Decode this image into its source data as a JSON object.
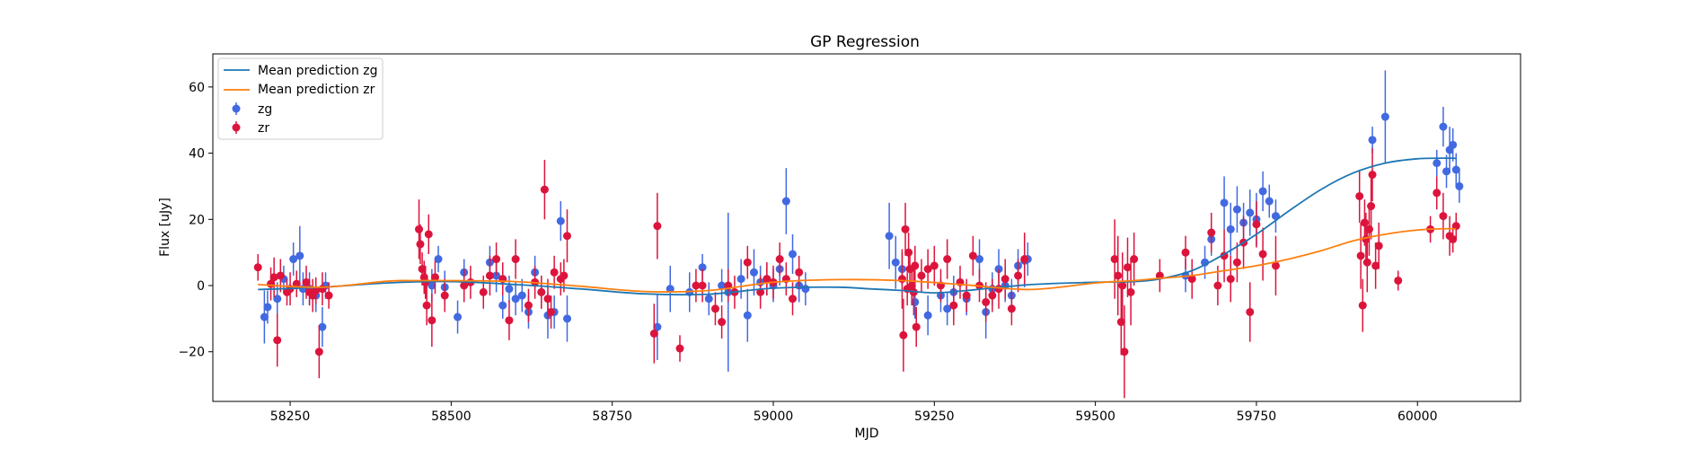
{
  "chart_data": {
    "type": "scatter",
    "title": "GP Regression",
    "xlabel": "MJD",
    "ylabel": "Flux [uJy]",
    "xlim": [
      58130,
      60160
    ],
    "ylim": [
      -35,
      70
    ],
    "xticks": [
      58250,
      58500,
      58750,
      59000,
      59250,
      59500,
      59750,
      60000
    ],
    "yticks": [
      -20,
      0,
      20,
      40,
      60
    ],
    "grid": false,
    "legend_position": "top-left",
    "series": [
      {
        "name": "Mean prediction zg",
        "kind": "line",
        "color": "#1f77b4",
        "x": [
          58200,
          58300,
          58400,
          58500,
          58600,
          58700,
          58800,
          58900,
          59000,
          59100,
          59150,
          59200,
          59250,
          59300,
          59400,
          59500,
          59560,
          59600,
          59650,
          59700,
          59750,
          59800,
          59850,
          59900,
          59950,
          60000,
          60050,
          60060
        ],
        "y": [
          -1.2,
          -0.5,
          0.8,
          1.2,
          0.3,
          -1.0,
          -2.5,
          -2.6,
          -0.8,
          -0.5,
          -1.0,
          -1.5,
          -2.2,
          -1.5,
          0.3,
          1.0,
          1.2,
          2.0,
          4.5,
          9.5,
          15.5,
          22.5,
          29.0,
          34.0,
          37.0,
          38.3,
          38.5,
          38.4
        ]
      },
      {
        "name": "Mean prediction zr",
        "kind": "line",
        "color": "#ff7f0e",
        "x": [
          58200,
          58300,
          58400,
          58450,
          58500,
          58600,
          58700,
          58800,
          58900,
          59000,
          59100,
          59200,
          59300,
          59400,
          59500,
          59560,
          59600,
          59650,
          59700,
          59750,
          59800,
          59850,
          59900,
          59950,
          60000,
          60050,
          60060
        ],
        "y": [
          0.3,
          -0.5,
          1.3,
          1.5,
          1.5,
          1.2,
          -0.2,
          -1.8,
          -1.5,
          1.0,
          1.8,
          1.5,
          0.2,
          -1.2,
          0.8,
          1.5,
          2.2,
          3.0,
          4.5,
          6.0,
          8.0,
          10.5,
          13.5,
          15.5,
          16.8,
          17.2,
          17.0
        ]
      },
      {
        "name": "zg",
        "kind": "errorbar",
        "color": "#4169e1",
        "x": [
          58210,
          58215,
          58230,
          58240,
          58255,
          58265,
          58270,
          58280,
          58290,
          58300,
          58305,
          58470,
          58480,
          58490,
          58510,
          58520,
          58560,
          58570,
          58580,
          58590,
          58600,
          58610,
          58620,
          58630,
          58640,
          58650,
          58660,
          58670,
          58680,
          58820,
          58840,
          58870,
          58890,
          58900,
          58920,
          58930,
          58950,
          58960,
          58970,
          58980,
          58990,
          59000,
          59010,
          59020,
          59030,
          59040,
          59050,
          59180,
          59190,
          59200,
          59220,
          59240,
          59260,
          59270,
          59280,
          59300,
          59320,
          59330,
          59340,
          59350,
          59360,
          59370,
          59380,
          59390,
          59395,
          59640,
          59670,
          59680,
          59700,
          59710,
          59720,
          59730,
          59740,
          59750,
          59760,
          59770,
          59780,
          59930,
          59950,
          60030,
          60040,
          60045,
          60050,
          60055,
          60060,
          60065
        ],
        "y": [
          -9.5,
          -6.5,
          -4,
          2,
          8,
          9,
          -1,
          -1,
          -3,
          -12.5,
          0,
          0,
          8,
          -0.5,
          -9.5,
          4,
          7,
          3,
          -6,
          -1,
          -4,
          -3,
          -8,
          4,
          -2,
          -9,
          -8,
          19.5,
          -10,
          -12.5,
          -1,
          -2,
          5.5,
          -4,
          0,
          -2,
          2,
          -9,
          4,
          1,
          2,
          0,
          5,
          25.5,
          9.5,
          0,
          -1,
          15,
          7,
          5,
          -5,
          -9,
          -3,
          -7,
          -2,
          -4,
          8,
          -8,
          -1,
          5,
          0,
          -3,
          6,
          7.5,
          8,
          3,
          7,
          14,
          25,
          17,
          23,
          19,
          22,
          20,
          28.5,
          25.5,
          21,
          44,
          51,
          37,
          48,
          34.5,
          41,
          42.5,
          35,
          30
        ],
        "yerr": [
          8,
          5,
          5,
          4,
          5,
          9,
          5,
          5,
          5,
          6,
          4,
          5,
          4,
          5,
          5,
          4,
          5,
          5,
          4,
          4,
          5,
          5,
          5,
          5,
          5,
          7,
          5,
          6,
          7,
          10,
          7,
          6,
          4,
          5,
          5,
          24,
          6,
          8,
          7,
          5,
          5,
          5,
          5,
          10,
          6,
          5,
          5,
          10,
          8,
          5,
          5,
          6,
          5,
          5,
          5,
          5,
          6,
          8,
          5,
          6,
          5,
          5,
          5,
          8,
          5,
          5,
          5,
          5,
          8,
          8,
          7,
          6,
          7,
          8,
          6,
          5,
          5,
          4,
          14,
          4,
          6,
          5,
          7,
          5,
          5,
          5
        ]
      },
      {
        "name": "zr",
        "kind": "errorbar",
        "color": "#dc143c",
        "x": [
          58200,
          58220,
          58225,
          58230,
          58235,
          58245,
          58250,
          58260,
          58275,
          58280,
          58285,
          58290,
          58295,
          58300,
          58310,
          58450,
          58452,
          58455,
          58458,
          58460,
          58462,
          58465,
          58470,
          58475,
          58490,
          58520,
          58530,
          58550,
          58560,
          58570,
          58580,
          58590,
          58600,
          58620,
          58630,
          58640,
          58645,
          58650,
          58655,
          58660,
          58670,
          58675,
          58680,
          58815,
          58820,
          58855,
          58880,
          58890,
          58910,
          58920,
          58930,
          58940,
          58960,
          58980,
          58990,
          59000,
          59010,
          59020,
          59030,
          59040,
          59200,
          59202,
          59205,
          59208,
          59210,
          59212,
          59215,
          59218,
          59220,
          59222,
          59230,
          59240,
          59250,
          59260,
          59270,
          59280,
          59290,
          59300,
          59310,
          59320,
          59330,
          59340,
          59350,
          59360,
          59370,
          59380,
          59390,
          59530,
          59535,
          59540,
          59542,
          59545,
          59550,
          59555,
          59560,
          59600,
          59640,
          59650,
          59680,
          59690,
          59700,
          59710,
          59720,
          59730,
          59740,
          59750,
          59760,
          59780,
          59910,
          59912,
          59915,
          59918,
          59920,
          59922,
          59925,
          59928,
          59930,
          59935,
          59940,
          59970,
          60020,
          60030,
          60040,
          60050,
          60055,
          60060
        ],
        "y": [
          5.5,
          0.5,
          2.5,
          -16.5,
          3,
          -2,
          -1,
          0.5,
          1,
          -2,
          -3,
          -1.5,
          -20,
          -1,
          -3,
          17,
          12.5,
          5,
          2.5,
          1,
          -6,
          15.5,
          -10.5,
          2.5,
          -3,
          0,
          1,
          -2,
          3,
          8,
          2,
          -10.5,
          8,
          -6,
          1,
          -2,
          29,
          -4,
          -8,
          4,
          2,
          3,
          15,
          -14.5,
          18,
          -19,
          0,
          0,
          -7,
          -11,
          0,
          -2,
          7,
          -2,
          2,
          1,
          8,
          2,
          -4,
          4,
          2,
          -15,
          17,
          -1,
          10,
          5,
          0,
          -2,
          6,
          -12.5,
          3,
          5,
          6,
          0,
          8,
          -6,
          1,
          -3,
          9,
          0,
          -5,
          -3,
          -1,
          2,
          -7,
          3,
          8,
          8,
          3,
          -11,
          0,
          -20,
          5.5,
          -2,
          8,
          3,
          10,
          2,
          16,
          0,
          9,
          2,
          7,
          13,
          -8,
          18.5,
          9.5,
          6,
          27,
          9,
          -6,
          19,
          14,
          7,
          17,
          24,
          33.5,
          6,
          12,
          1.5,
          17,
          28,
          21,
          15,
          14,
          18
        ],
        "yerr": [
          4,
          5,
          6,
          8,
          5,
          4,
          5,
          4,
          5,
          4,
          5,
          4,
          8,
          5,
          4,
          9,
          6,
          5,
          5,
          5,
          6,
          6,
          8,
          5,
          5,
          5,
          5,
          5,
          6,
          5,
          5,
          6,
          6,
          5,
          5,
          5,
          9,
          6,
          5,
          5,
          5,
          5,
          8,
          9,
          10,
          4,
          5,
          5,
          5,
          5,
          5,
          5,
          5,
          5,
          5,
          5,
          5,
          5,
          5,
          5,
          9,
          11,
          8,
          5,
          6,
          6,
          6,
          7,
          6,
          6,
          5,
          6,
          6,
          5,
          6,
          6,
          5,
          5,
          6,
          5,
          6,
          5,
          6,
          6,
          5,
          5,
          8,
          12,
          12,
          10,
          10,
          14,
          9,
          10,
          8,
          5,
          5,
          6,
          6,
          6,
          8,
          7,
          6,
          8,
          9,
          7,
          8,
          9,
          8,
          10,
          8,
          7,
          8,
          9,
          8,
          10,
          8,
          7,
          7,
          3,
          4,
          5,
          7,
          6,
          4,
          4
        ]
      }
    ]
  }
}
